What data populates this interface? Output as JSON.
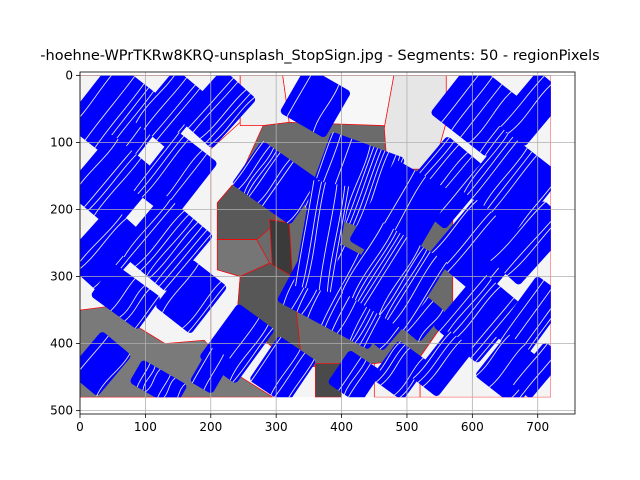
{
  "chart_data": {
    "type": "image",
    "title": "-hoehne-WPrTKRw8KRQ-unsplash_StopSign.jpg - Segments: 50 - regionPixels",
    "xlabel": "",
    "ylabel": "",
    "xlim": [
      0,
      757
    ],
    "ylim": [
      505,
      -5
    ],
    "image_extent": [
      0,
      720,
      0,
      480
    ],
    "y_inverted": true,
    "grid": true,
    "x_ticks": [
      0,
      100,
      200,
      300,
      400,
      500,
      600,
      700
    ],
    "y_ticks": [
      0,
      100,
      200,
      300,
      400,
      500
    ],
    "colors": {
      "boundary": "#ff0000",
      "flow": "#0000ff",
      "gray_dark": "#3c3c3c",
      "gray_mid": "#5a5a5a",
      "gray": "#777777",
      "gray_light": "#888888",
      "light": "#e6e6e6",
      "lighter": "#f2f2f2"
    },
    "regions": [
      {
        "name": "background-left",
        "shade": "#f4f4f4",
        "points": [
          [
            0,
            0
          ],
          [
            245,
            0
          ],
          [
            245,
            70
          ],
          [
            200,
            110
          ],
          [
            200,
            480
          ],
          [
            0,
            480
          ]
        ]
      },
      {
        "name": "background-right",
        "shade": "#f4f4f4",
        "points": [
          [
            560,
            0
          ],
          [
            720,
            0
          ],
          [
            720,
            480
          ],
          [
            520,
            480
          ],
          [
            520,
            420
          ],
          [
            570,
            350
          ],
          [
            570,
            170
          ],
          [
            540,
            140
          ],
          [
            560,
            70
          ]
        ]
      },
      {
        "name": "sky-top",
        "shade": "#efefef",
        "points": [
          [
            245,
            0
          ],
          [
            310,
            0
          ],
          [
            320,
            70
          ],
          [
            280,
            75
          ],
          [
            245,
            75
          ]
        ]
      },
      {
        "name": "sky-top-center",
        "shade": "#f7f7f7",
        "points": [
          [
            310,
            0
          ],
          [
            480,
            0
          ],
          [
            465,
            80
          ],
          [
            320,
            70
          ]
        ]
      },
      {
        "name": "sky-top-right",
        "shade": "#e6e6e6",
        "points": [
          [
            480,
            0
          ],
          [
            560,
            0
          ],
          [
            560,
            70
          ],
          [
            540,
            140
          ],
          [
            470,
            140
          ],
          [
            465,
            80
          ]
        ]
      },
      {
        "name": "sign-body",
        "shade": "#6b6b6b",
        "points": [
          [
            320,
            70
          ],
          [
            465,
            75
          ],
          [
            470,
            140
          ],
          [
            540,
            140
          ],
          [
            570,
            170
          ],
          [
            570,
            350
          ],
          [
            520,
            420
          ],
          [
            450,
            430
          ],
          [
            340,
            435
          ],
          [
            300,
            410
          ],
          [
            240,
            360
          ],
          [
            245,
            300
          ],
          [
            210,
            290
          ],
          [
            210,
            190
          ],
          [
            245,
            150
          ],
          [
            280,
            75
          ]
        ]
      },
      {
        "name": "sign-left-dark",
        "shade": "#595959",
        "points": [
          [
            210,
            190
          ],
          [
            245,
            150
          ],
          [
            290,
            140
          ],
          [
            300,
            220
          ],
          [
            270,
            245
          ],
          [
            210,
            245
          ]
        ]
      },
      {
        "name": "sign-left-mid",
        "shade": "#767676",
        "points": [
          [
            210,
            245
          ],
          [
            270,
            245
          ],
          [
            290,
            280
          ],
          [
            245,
            300
          ],
          [
            210,
            290
          ]
        ]
      },
      {
        "name": "pole-dark",
        "shade": "#3a3a3a",
        "points": [
          [
            290,
            215
          ],
          [
            320,
            220
          ],
          [
            325,
            300
          ],
          [
            295,
            300
          ]
        ]
      },
      {
        "name": "sign-lower-left",
        "shade": "#575757",
        "points": [
          [
            245,
            300
          ],
          [
            290,
            280
          ],
          [
            325,
            300
          ],
          [
            340,
            435
          ],
          [
            300,
            410
          ],
          [
            240,
            360
          ]
        ]
      },
      {
        "name": "pole",
        "shade": "#4a4a4a",
        "points": [
          [
            360,
            430
          ],
          [
            400,
            430
          ],
          [
            400,
            480
          ],
          [
            360,
            480
          ]
        ]
      },
      {
        "name": "ground-left",
        "shade": "#7a7a7a",
        "points": [
          [
            0,
            350
          ],
          [
            40,
            345
          ],
          [
            80,
            370
          ],
          [
            130,
            400
          ],
          [
            190,
            395
          ],
          [
            230,
            440
          ],
          [
            295,
            480
          ],
          [
            0,
            480
          ]
        ]
      },
      {
        "name": "sign-lower-right",
        "shade": "#f2f2f2",
        "points": [
          [
            450,
            430
          ],
          [
            520,
            420
          ],
          [
            520,
            480
          ],
          [
            450,
            480
          ]
        ]
      }
    ],
    "flow_tiles": [
      {
        "cx": 60,
        "cy": 60,
        "w": 120,
        "h": 120,
        "angle": 38
      },
      {
        "cx": 140,
        "cy": 50,
        "w": 70,
        "h": 100,
        "angle": 40
      },
      {
        "cx": 210,
        "cy": 50,
        "w": 70,
        "h": 100,
        "angle": 42
      },
      {
        "cx": 50,
        "cy": 160,
        "w": 100,
        "h": 110,
        "angle": 40
      },
      {
        "cx": 145,
        "cy": 150,
        "w": 80,
        "h": 110,
        "angle": 38
      },
      {
        "cx": 40,
        "cy": 260,
        "w": 80,
        "h": 110,
        "angle": 42
      },
      {
        "cx": 130,
        "cy": 250,
        "w": 100,
        "h": 110,
        "angle": 40
      },
      {
        "cx": 70,
        "cy": 330,
        "w": 90,
        "h": 60,
        "angle": 36
      },
      {
        "cx": 360,
        "cy": 40,
        "w": 80,
        "h": 80,
        "angle": 30
      },
      {
        "cx": 610,
        "cy": 50,
        "w": 110,
        "h": 100,
        "angle": 38
      },
      {
        "cx": 690,
        "cy": 50,
        "w": 60,
        "h": 100,
        "angle": 40
      },
      {
        "cx": 560,
        "cy": 160,
        "w": 90,
        "h": 110,
        "angle": 40
      },
      {
        "cx": 660,
        "cy": 160,
        "w": 110,
        "h": 110,
        "angle": 38
      },
      {
        "cx": 610,
        "cy": 260,
        "w": 110,
        "h": 110,
        "angle": 40
      },
      {
        "cx": 690,
        "cy": 250,
        "w": 60,
        "h": 120,
        "angle": 42
      },
      {
        "cx": 610,
        "cy": 360,
        "w": 90,
        "h": 110,
        "angle": 40
      },
      {
        "cx": 690,
        "cy": 360,
        "w": 60,
        "h": 110,
        "angle": 36
      },
      {
        "cx": 660,
        "cy": 440,
        "w": 80,
        "h": 80,
        "angle": 38
      },
      {
        "cx": 700,
        "cy": 440,
        "w": 40,
        "h": 80,
        "angle": 40
      },
      {
        "cx": 490,
        "cy": 440,
        "w": 60,
        "h": 70,
        "angle": 36
      },
      {
        "cx": 555,
        "cy": 430,
        "w": 50,
        "h": 90,
        "angle": 38
      },
      {
        "cx": 420,
        "cy": 450,
        "w": 60,
        "h": 60,
        "angle": 34
      },
      {
        "cx": 310,
        "cy": 440,
        "w": 70,
        "h": 80,
        "angle": 34
      },
      {
        "cx": 240,
        "cy": 400,
        "w": 70,
        "h": 100,
        "angle": 36
      },
      {
        "cx": 170,
        "cy": 330,
        "w": 70,
        "h": 90,
        "angle": 38
      },
      {
        "cx": 200,
        "cy": 440,
        "w": 40,
        "h": 60,
        "angle": 30
      },
      {
        "cx": 120,
        "cy": 460,
        "w": 80,
        "h": 40,
        "angle": 30
      },
      {
        "cx": 30,
        "cy": 430,
        "w": 60,
        "h": 80,
        "angle": 40
      },
      {
        "cx": 460,
        "cy": 370,
        "w": 60,
        "h": 60,
        "angle": 40
      },
      {
        "cx": 520,
        "cy": 360,
        "w": 50,
        "h": 60,
        "angle": 40
      }
    ],
    "sign_flow": [
      {
        "cx": 420,
        "cy": 160,
        "w": 120,
        "h": 120,
        "angle": 20
      },
      {
        "cx": 490,
        "cy": 210,
        "w": 100,
        "h": 140,
        "angle": 30
      },
      {
        "cx": 400,
        "cy": 320,
        "w": 160,
        "h": 120,
        "angle": 28
      },
      {
        "cx": 300,
        "cy": 160,
        "w": 110,
        "h": 80,
        "angle": 35
      },
      {
        "cx": 370,
        "cy": 240,
        "w": 60,
        "h": 160,
        "angle": 10
      },
      {
        "cx": 480,
        "cy": 300,
        "w": 120,
        "h": 120,
        "angle": 32
      }
    ]
  }
}
